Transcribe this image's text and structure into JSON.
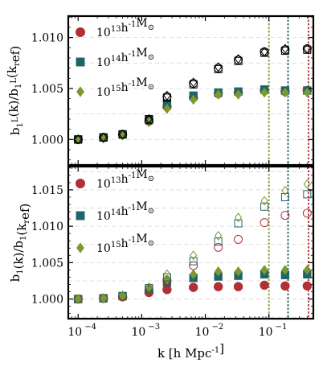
{
  "chart_data": {
    "type": "scatter",
    "colors": {
      "red": "#b03035",
      "teal": "#1f6469",
      "olive": "#7a9a2e"
    },
    "legend": {
      "labels": [
        "10^{13}h^{-1}M_⊙",
        "10^{14}h^{-1}M_⊙",
        "10^{15}h^{-1}M_⊙"
      ],
      "placement": "top-left"
    },
    "x": [
      0.0001,
      0.00025,
      0.0005,
      0.0013,
      0.0025,
      0.0065,
      0.016,
      0.033,
      0.085,
      0.18,
      0.4
    ],
    "vlines": [
      {
        "x": 0.1,
        "color": "olive"
      },
      {
        "x": 0.2,
        "color": "teal"
      },
      {
        "x": 0.42,
        "color": "red"
      }
    ],
    "xlabel": "k [h Mpc^{-1}]",
    "xlim": [
      7e-05,
      0.5
    ],
    "xscale": "log",
    "xticks": [
      0.0001,
      0.001,
      0.01,
      0.1
    ],
    "xtick_labels": [
      "10",
      "10",
      "10",
      "10"
    ],
    "xtick_exponents": [
      "−4",
      "−3",
      "−2",
      "−1"
    ],
    "panels": [
      {
        "ylabel": "b_1^L(k)/b_1^L(k_ref)",
        "ylim": [
          0.9975,
          1.0121
        ],
        "yticks": [
          1.0,
          1.005,
          1.01
        ],
        "ytick_labels": [
          "1.000",
          "1.005",
          "1.010"
        ],
        "grid": "horizontal-dashed",
        "series": [
          {
            "legend_index": 0,
            "marker": "circle",
            "fill": "filled",
            "color": "red",
            "values": [
              1.0,
              1.0002,
              1.0005,
              1.0018,
              1.0032,
              1.0041,
              1.0045,
              1.0046,
              1.0048,
              1.0047,
              1.0048
            ]
          },
          {
            "legend_index": 1,
            "marker": "square",
            "fill": "filled",
            "color": "teal",
            "values": [
              1.0,
              1.0002,
              1.0005,
              1.0019,
              1.0035,
              1.0043,
              1.0046,
              1.0047,
              1.0049,
              1.0048,
              1.0048
            ]
          },
          {
            "legend_index": 2,
            "marker": "diamond",
            "fill": "filled",
            "color": "olive",
            "values": [
              1.0,
              1.0001,
              1.0004,
              1.0017,
              1.003,
              1.0039,
              1.0044,
              1.0044,
              1.0046,
              1.0046,
              1.0046
            ]
          },
          {
            "marker": "circle",
            "fill": "open",
            "color": "black",
            "values": [
              1.0,
              1.0002,
              1.0005,
              1.0019,
              1.0042,
              1.0055,
              1.007,
              1.0078,
              1.0086,
              1.0088,
              1.0089
            ]
          },
          {
            "marker": "square",
            "fill": "open",
            "color": "black",
            "values": [
              1.0,
              1.0002,
              1.0005,
              1.002,
              1.0041,
              1.0054,
              1.0069,
              1.0077,
              1.0085,
              1.0087,
              1.0088
            ]
          },
          {
            "marker": "diamond",
            "fill": "open",
            "color": "black",
            "values": [
              1.0,
              1.0002,
              1.0005,
              1.002,
              1.0043,
              1.0056,
              1.0071,
              1.0079,
              1.0086,
              1.0089,
              1.0089
            ]
          }
        ]
      },
      {
        "ylabel": "b_1(k)/b_1(k_ref)",
        "ylim": [
          0.9973,
          1.0182
        ],
        "yticks": [
          1.0,
          1.005,
          1.01,
          1.015
        ],
        "ytick_labels": [
          "1.000",
          "1.005",
          "1.010",
          "1.015"
        ],
        "grid": "horizontal-dashed",
        "series": [
          {
            "legend_index": 0,
            "marker": "circle",
            "fill": "filled",
            "color": "red",
            "values": [
              1.0,
              1.0001,
              1.0003,
              1.0009,
              1.0013,
              1.0016,
              1.0017,
              1.0017,
              1.0019,
              1.0018,
              1.0018
            ]
          },
          {
            "legend_index": 1,
            "marker": "square",
            "fill": "filled",
            "color": "teal",
            "values": [
              1.0,
              1.0001,
              1.0004,
              1.0013,
              1.0023,
              1.0029,
              1.0031,
              1.0032,
              1.0034,
              1.0033,
              1.0034
            ]
          },
          {
            "legend_index": 2,
            "marker": "diamond",
            "fill": "filled",
            "color": "olive",
            "values": [
              1.0,
              1.0001,
              1.0004,
              1.0016,
              1.0027,
              1.0034,
              1.0038,
              1.0038,
              1.004,
              1.004,
              1.004
            ]
          },
          {
            "marker": "circle",
            "fill": "open",
            "color": "red",
            "values": [
              1.0,
              1.0001,
              1.0004,
              1.0013,
              1.0025,
              1.0046,
              1.0071,
              1.0082,
              1.0105,
              1.0115,
              1.0118
            ]
          },
          {
            "marker": "square",
            "fill": "open",
            "color": "teal",
            "values": [
              1.0,
              1.0001,
              1.0004,
              1.0015,
              1.003,
              1.0052,
              1.0079,
              1.0104,
              1.0127,
              1.014,
              1.0144
            ]
          },
          {
            "marker": "diamond",
            "fill": "open",
            "color": "olive",
            "values": [
              1.0,
              1.0001,
              1.0005,
              1.0016,
              1.0034,
              1.006,
              1.0087,
              1.0112,
              1.0135,
              1.0149,
              1.0158
            ]
          }
        ]
      }
    ]
  }
}
